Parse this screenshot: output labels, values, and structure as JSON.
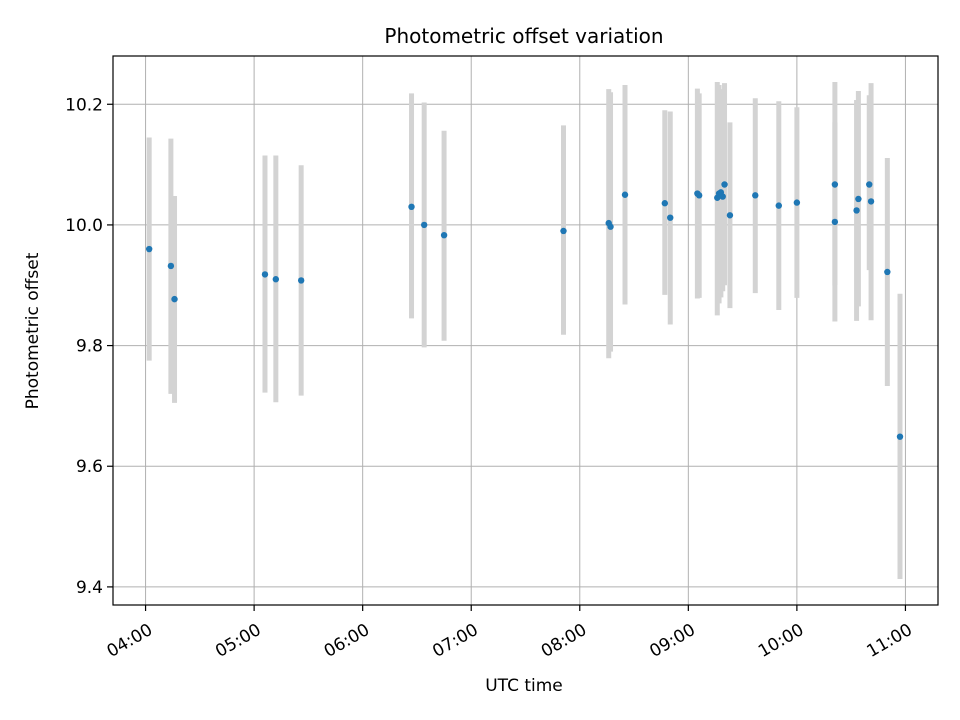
{
  "chart_data": {
    "type": "scatter",
    "title": "Photometric offset variation",
    "xlabel": "UTC time",
    "ylabel": "Photometric offset",
    "xlim": [
      "03:42",
      "11:18"
    ],
    "ylim": [
      9.37,
      10.28
    ],
    "x_ticks": [
      "04:00",
      "05:00",
      "06:00",
      "07:00",
      "08:00",
      "09:00",
      "10:00",
      "11:00"
    ],
    "y_ticks": [
      "9.4",
      "9.6",
      "9.8",
      "10.0",
      "10.2"
    ],
    "grid": true,
    "point_color": "#1f77b4",
    "errorbar_color": "#d3d3d3",
    "points": [
      {
        "x": "04:02",
        "y": 9.96,
        "lo": 9.775,
        "hi": 10.145
      },
      {
        "x": "04:14",
        "y": 9.932,
        "lo": 9.72,
        "hi": 10.143
      },
      {
        "x": "04:16",
        "y": 9.877,
        "lo": 9.705,
        "hi": 10.048
      },
      {
        "x": "05:06",
        "y": 9.918,
        "lo": 9.722,
        "hi": 10.115
      },
      {
        "x": "05:12",
        "y": 9.91,
        "lo": 9.706,
        "hi": 10.115
      },
      {
        "x": "05:26",
        "y": 9.908,
        "lo": 9.717,
        "hi": 10.099
      },
      {
        "x": "06:27",
        "y": 10.03,
        "lo": 9.845,
        "hi": 10.218
      },
      {
        "x": "06:34",
        "y": 10.0,
        "lo": 9.797,
        "hi": 10.203
      },
      {
        "x": "06:45",
        "y": 9.983,
        "lo": 9.808,
        "hi": 10.156
      },
      {
        "x": "07:51",
        "y": 9.99,
        "lo": 9.818,
        "hi": 10.165
      },
      {
        "x": "08:16",
        "y": 10.003,
        "lo": 9.779,
        "hi": 10.225
      },
      {
        "x": "08:17",
        "y": 9.997,
        "lo": 9.79,
        "hi": 10.22
      },
      {
        "x": "08:25",
        "y": 10.05,
        "lo": 9.868,
        "hi": 10.232
      },
      {
        "x": "08:47",
        "y": 10.036,
        "lo": 9.884,
        "hi": 10.19
      },
      {
        "x": "08:50",
        "y": 10.012,
        "lo": 9.835,
        "hi": 10.188
      },
      {
        "x": "09:05",
        "y": 10.052,
        "lo": 9.878,
        "hi": 10.226
      },
      {
        "x": "09:06",
        "y": 10.049,
        "lo": 9.879,
        "hi": 10.218
      },
      {
        "x": "09:16",
        "y": 10.045,
        "lo": 9.85,
        "hi": 10.237
      },
      {
        "x": "09:17",
        "y": 10.052,
        "lo": 9.87,
        "hi": 10.232
      },
      {
        "x": "09:18",
        "y": 10.054,
        "lo": 9.88,
        "hi": 10.225
      },
      {
        "x": "09:19",
        "y": 10.047,
        "lo": 9.89,
        "hi": 10.21
      },
      {
        "x": "09:20",
        "y": 10.067,
        "lo": 9.9,
        "hi": 10.235
      },
      {
        "x": "09:23",
        "y": 10.016,
        "lo": 9.862,
        "hi": 10.17
      },
      {
        "x": "09:37",
        "y": 10.049,
        "lo": 9.887,
        "hi": 10.21
      },
      {
        "x": "09:50",
        "y": 10.032,
        "lo": 9.859,
        "hi": 10.205
      },
      {
        "x": "10:00",
        "y": 10.037,
        "lo": 9.879,
        "hi": 10.195
      },
      {
        "x": "10:21",
        "y": 10.067,
        "lo": 9.9,
        "hi": 10.237
      },
      {
        "x": "10:21",
        "y": 10.005,
        "lo": 9.84,
        "hi": 10.17
      },
      {
        "x": "10:33",
        "y": 10.024,
        "lo": 9.841,
        "hi": 10.207
      },
      {
        "x": "10:34",
        "y": 10.043,
        "lo": 9.865,
        "hi": 10.222
      },
      {
        "x": "10:40",
        "y": 10.067,
        "lo": 9.925,
        "hi": 10.215
      },
      {
        "x": "10:41",
        "y": 10.039,
        "lo": 9.842,
        "hi": 10.235
      },
      {
        "x": "10:50",
        "y": 9.922,
        "lo": 9.733,
        "hi": 10.111
      },
      {
        "x": "10:57",
        "y": 9.649,
        "lo": 9.413,
        "hi": 9.886
      }
    ]
  }
}
